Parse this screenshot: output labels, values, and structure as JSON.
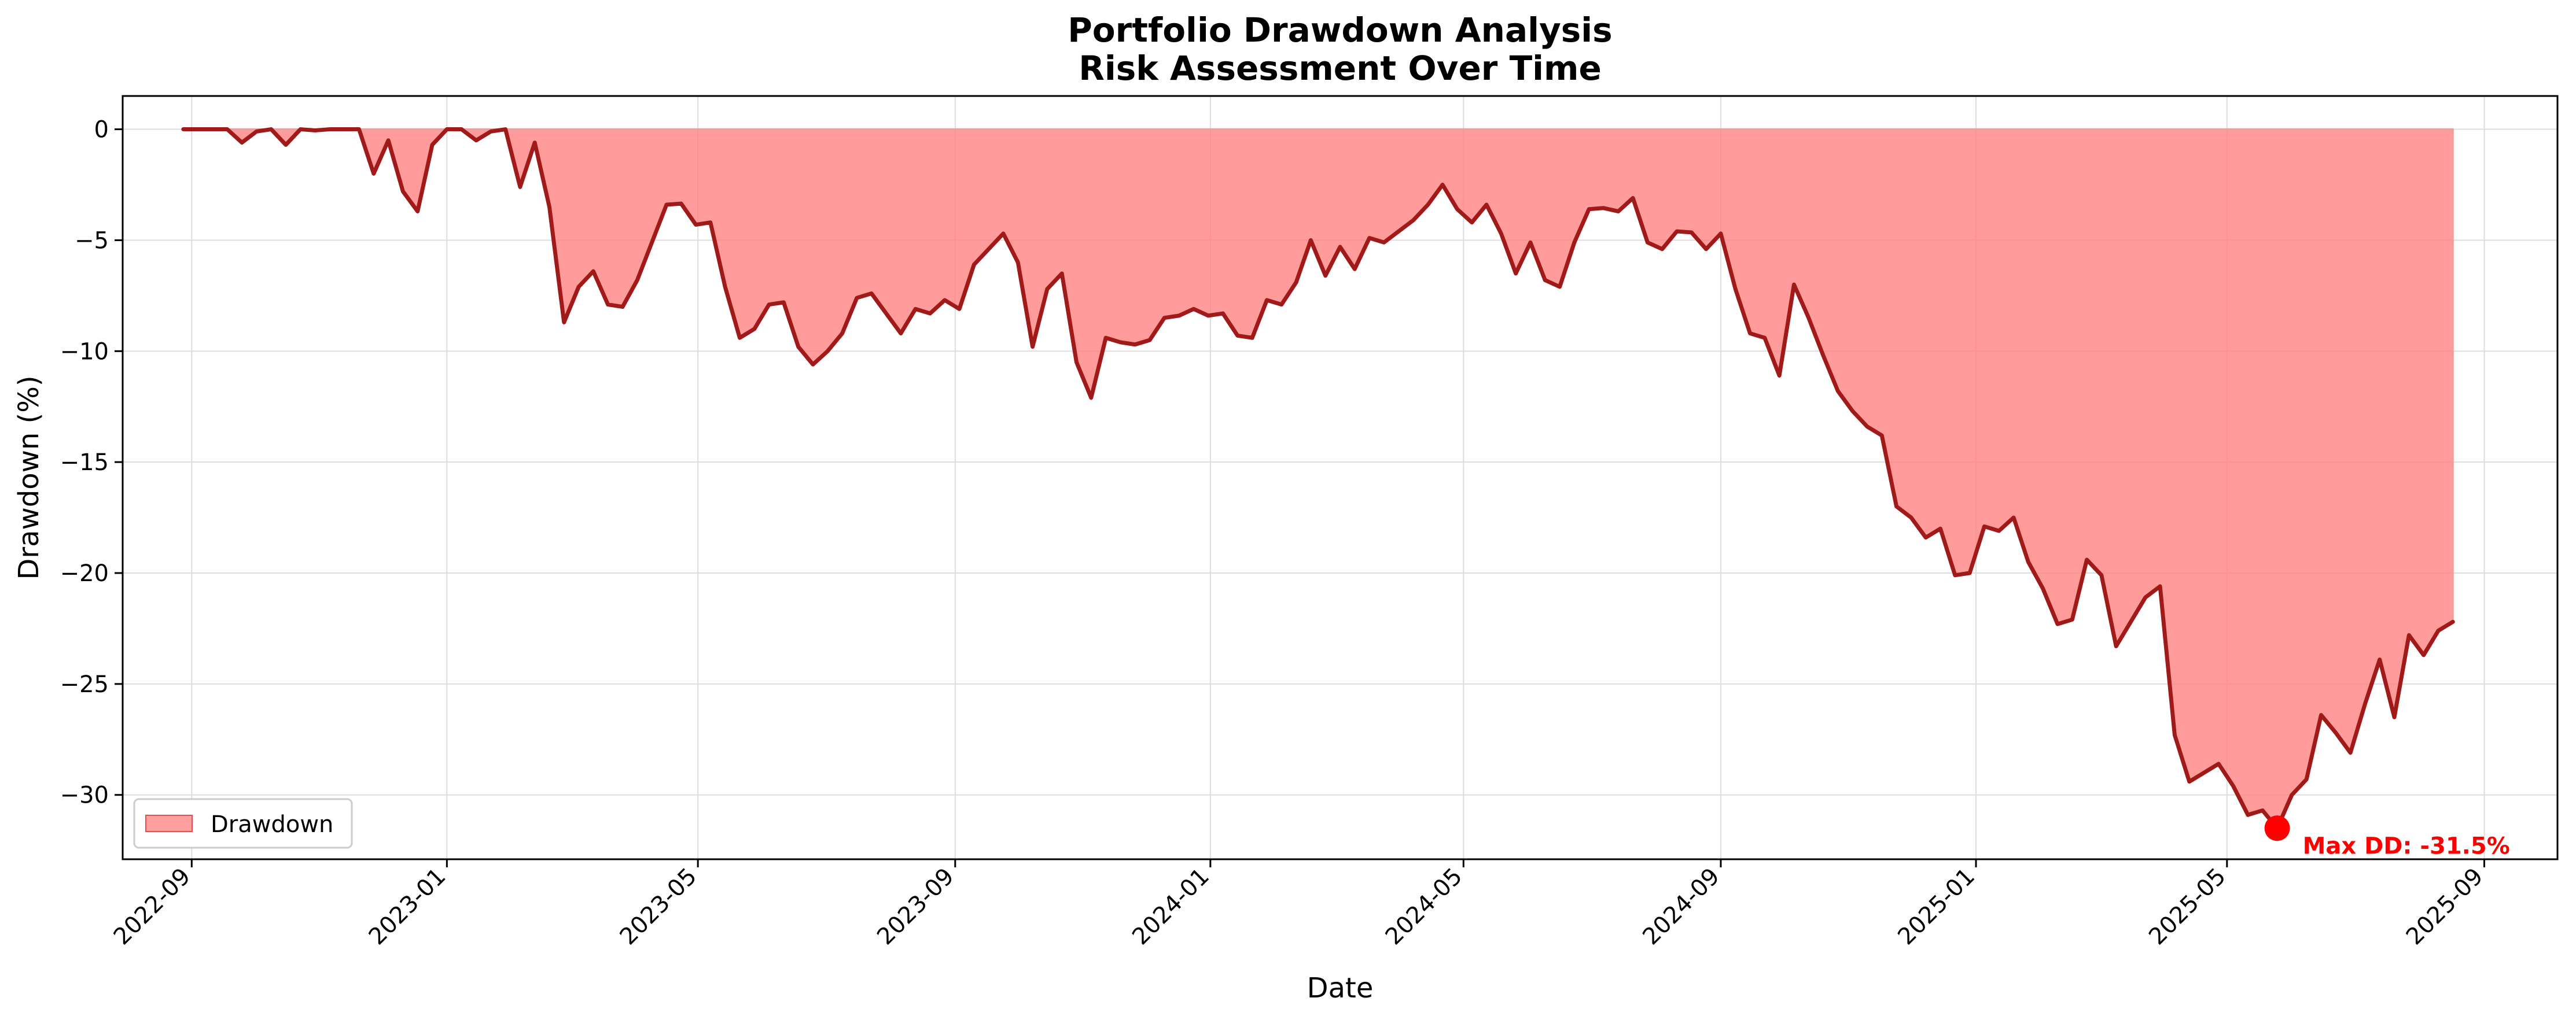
{
  "chart_data": {
    "type": "area",
    "title": "Portfolio Drawdown Analysis",
    "subtitle": "Risk Assessment Over Time",
    "xlabel": "Date",
    "ylabel": "Drawdown (%)",
    "xlim": [
      "2022-07-30",
      "2025-10-06"
    ],
    "ylim": [
      -32.9,
      1.5
    ],
    "x_ticks": [
      "2022-09-01",
      "2023-01-01",
      "2023-05-01",
      "2023-09-01",
      "2024-01-01",
      "2024-05-01",
      "2024-09-01",
      "2025-01-01",
      "2025-05-01",
      "2025-09-01"
    ],
    "x_tick_labels": [
      "2022-09",
      "2023-01",
      "2023-05",
      "2023-09",
      "2024-01",
      "2024-05",
      "2024-09",
      "2025-01",
      "2025-05",
      "2025-09"
    ],
    "y_ticks": [
      0,
      -5,
      -10,
      -15,
      -20,
      -25,
      -30
    ],
    "y_tick_labels": [
      "0",
      "−5",
      "−10",
      "−15",
      "−20",
      "−25",
      "−30"
    ],
    "grid": true,
    "legend": {
      "position": "lower-left",
      "entries": [
        "Drawdown"
      ]
    },
    "colors": {
      "fill": "#ff7f7f",
      "line": "#a01a1a",
      "marker": "#ff0000",
      "annotation": "#ff0000"
    },
    "series": [
      {
        "name": "Drawdown",
        "points": [
          [
            "2022-08-28",
            0.0
          ],
          [
            "2022-09-04",
            0.0
          ],
          [
            "2022-09-11",
            0.0
          ],
          [
            "2022-09-18",
            0.0
          ],
          [
            "2022-09-25",
            -0.6
          ],
          [
            "2022-10-02",
            -0.1
          ],
          [
            "2022-10-09",
            0.0
          ],
          [
            "2022-10-16",
            -0.7
          ],
          [
            "2022-10-23",
            0.0
          ],
          [
            "2022-10-30",
            -0.05
          ],
          [
            "2022-11-06",
            0.0
          ],
          [
            "2022-11-13",
            0.0
          ],
          [
            "2022-11-20",
            0.0
          ],
          [
            "2022-11-27",
            -2.0
          ],
          [
            "2022-12-04",
            -0.5
          ],
          [
            "2022-12-11",
            -2.8
          ],
          [
            "2022-12-18",
            -3.7
          ],
          [
            "2022-12-25",
            -0.7
          ],
          [
            "2023-01-01",
            0.0
          ],
          [
            "2023-01-08",
            0.0
          ],
          [
            "2023-01-15",
            -0.5
          ],
          [
            "2023-01-22",
            -0.1
          ],
          [
            "2023-01-29",
            0.0
          ],
          [
            "2023-02-05",
            -2.6
          ],
          [
            "2023-02-12",
            -0.6
          ],
          [
            "2023-02-19",
            -3.5
          ],
          [
            "2023-02-26",
            -8.7
          ],
          [
            "2023-03-05",
            -7.1
          ],
          [
            "2023-03-12",
            -6.4
          ],
          [
            "2023-03-19",
            -7.9
          ],
          [
            "2023-03-26",
            -8.0
          ],
          [
            "2023-04-02",
            -6.8
          ],
          [
            "2023-04-09",
            -5.1
          ],
          [
            "2023-04-16",
            -3.4
          ],
          [
            "2023-04-23",
            -3.35
          ],
          [
            "2023-04-30",
            -4.3
          ],
          [
            "2023-05-07",
            -4.2
          ],
          [
            "2023-05-14",
            -7.1
          ],
          [
            "2023-05-21",
            -9.4
          ],
          [
            "2023-05-28",
            -9.0
          ],
          [
            "2023-06-04",
            -7.9
          ],
          [
            "2023-06-11",
            -7.8
          ],
          [
            "2023-06-18",
            -9.8
          ],
          [
            "2023-06-25",
            -10.6
          ],
          [
            "2023-07-02",
            -10.0
          ],
          [
            "2023-07-09",
            -9.2
          ],
          [
            "2023-07-16",
            -7.6
          ],
          [
            "2023-07-23",
            -7.4
          ],
          [
            "2023-07-30",
            -8.3
          ],
          [
            "2023-08-06",
            -9.2
          ],
          [
            "2023-08-13",
            -8.1
          ],
          [
            "2023-08-20",
            -8.3
          ],
          [
            "2023-08-27",
            -7.7
          ],
          [
            "2023-09-03",
            -8.1
          ],
          [
            "2023-09-10",
            -6.1
          ],
          [
            "2023-09-17",
            -5.4
          ],
          [
            "2023-09-24",
            -4.7
          ],
          [
            "2023-10-01",
            -6.0
          ],
          [
            "2023-10-08",
            -9.8
          ],
          [
            "2023-10-15",
            -7.2
          ],
          [
            "2023-10-22",
            -6.5
          ],
          [
            "2023-10-29",
            -10.5
          ],
          [
            "2023-11-05",
            -12.1
          ],
          [
            "2023-11-12",
            -9.4
          ],
          [
            "2023-11-19",
            -9.6
          ],
          [
            "2023-11-26",
            -9.7
          ],
          [
            "2023-12-03",
            -9.5
          ],
          [
            "2023-12-10",
            -8.5
          ],
          [
            "2023-12-17",
            -8.4
          ],
          [
            "2023-12-24",
            -8.1
          ],
          [
            "2023-12-31",
            -8.4
          ],
          [
            "2024-01-07",
            -8.3
          ],
          [
            "2024-01-14",
            -9.3
          ],
          [
            "2024-01-21",
            -9.4
          ],
          [
            "2024-01-28",
            -7.7
          ],
          [
            "2024-02-04",
            -7.9
          ],
          [
            "2024-02-11",
            -6.9
          ],
          [
            "2024-02-18",
            -5.0
          ],
          [
            "2024-02-25",
            -6.6
          ],
          [
            "2024-03-03",
            -5.3
          ],
          [
            "2024-03-10",
            -6.3
          ],
          [
            "2024-03-17",
            -4.9
          ],
          [
            "2024-03-24",
            -5.1
          ],
          [
            "2024-03-31",
            -4.6
          ],
          [
            "2024-04-07",
            -4.1
          ],
          [
            "2024-04-14",
            -3.4
          ],
          [
            "2024-04-21",
            -2.5
          ],
          [
            "2024-04-28",
            -3.6
          ],
          [
            "2024-05-05",
            -4.2
          ],
          [
            "2024-05-12",
            -3.4
          ],
          [
            "2024-05-19",
            -4.7
          ],
          [
            "2024-05-26",
            -6.5
          ],
          [
            "2024-06-02",
            -5.1
          ],
          [
            "2024-06-09",
            -6.8
          ],
          [
            "2024-06-16",
            -7.1
          ],
          [
            "2024-06-23",
            -5.1
          ],
          [
            "2024-06-30",
            -3.6
          ],
          [
            "2024-07-07",
            -3.55
          ],
          [
            "2024-07-14",
            -3.7
          ],
          [
            "2024-07-21",
            -3.1
          ],
          [
            "2024-07-28",
            -5.1
          ],
          [
            "2024-08-04",
            -5.4
          ],
          [
            "2024-08-11",
            -4.6
          ],
          [
            "2024-08-18",
            -4.65
          ],
          [
            "2024-08-25",
            -5.4
          ],
          [
            "2024-09-01",
            -4.7
          ],
          [
            "2024-09-08",
            -7.2
          ],
          [
            "2024-09-15",
            -9.2
          ],
          [
            "2024-09-22",
            -9.4
          ],
          [
            "2024-09-29",
            -11.1
          ],
          [
            "2024-10-06",
            -7.0
          ],
          [
            "2024-10-13",
            -8.5
          ],
          [
            "2024-10-20",
            -10.2
          ],
          [
            "2024-10-27",
            -11.8
          ],
          [
            "2024-11-03",
            -12.7
          ],
          [
            "2024-11-10",
            -13.4
          ],
          [
            "2024-11-17",
            -13.8
          ],
          [
            "2024-11-24",
            -17.0
          ],
          [
            "2024-12-01",
            -17.5
          ],
          [
            "2024-12-08",
            -18.4
          ],
          [
            "2024-12-15",
            -18.0
          ],
          [
            "2024-12-22",
            -20.1
          ],
          [
            "2024-12-29",
            -20.0
          ],
          [
            "2025-01-05",
            -17.9
          ],
          [
            "2025-01-12",
            -18.1
          ],
          [
            "2025-01-19",
            -17.5
          ],
          [
            "2025-01-26",
            -19.5
          ],
          [
            "2025-02-02",
            -20.7
          ],
          [
            "2025-02-09",
            -22.3
          ],
          [
            "2025-02-16",
            -22.1
          ],
          [
            "2025-02-23",
            -19.4
          ],
          [
            "2025-03-02",
            -20.1
          ],
          [
            "2025-03-09",
            -23.3
          ],
          [
            "2025-03-16",
            -22.2
          ],
          [
            "2025-03-23",
            -21.1
          ],
          [
            "2025-03-30",
            -20.6
          ],
          [
            "2025-04-06",
            -27.3
          ],
          [
            "2025-04-13",
            -29.4
          ],
          [
            "2025-04-20",
            -29.0
          ],
          [
            "2025-04-27",
            -28.6
          ],
          [
            "2025-05-04",
            -29.6
          ],
          [
            "2025-05-11",
            -30.9
          ],
          [
            "2025-05-18",
            -30.7
          ],
          [
            "2025-05-25",
            -31.5
          ],
          [
            "2025-06-01",
            -30.0
          ],
          [
            "2025-06-08",
            -29.3
          ],
          [
            "2025-06-15",
            -26.4
          ],
          [
            "2025-06-22",
            -27.2
          ],
          [
            "2025-06-29",
            -28.1
          ],
          [
            "2025-07-06",
            -25.9
          ],
          [
            "2025-07-13",
            -23.9
          ],
          [
            "2025-07-20",
            -26.5
          ],
          [
            "2025-07-27",
            -22.8
          ],
          [
            "2025-08-03",
            -23.7
          ],
          [
            "2025-08-10",
            -22.6
          ],
          [
            "2025-08-17",
            -22.2
          ]
        ]
      }
    ],
    "max_drawdown": {
      "date": "2025-05-25",
      "value": -31.5,
      "label": "Max DD: -31.5%"
    }
  }
}
